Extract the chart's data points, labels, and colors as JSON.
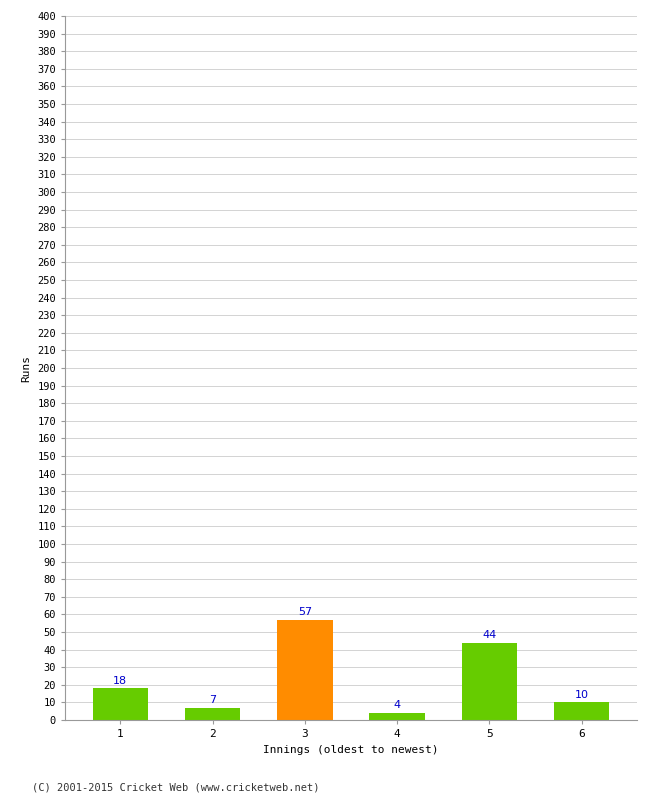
{
  "categories": [
    "1",
    "2",
    "3",
    "4",
    "5",
    "6"
  ],
  "values": [
    18,
    7,
    57,
    4,
    44,
    10
  ],
  "bar_colors": [
    "#66cc00",
    "#66cc00",
    "#ff8c00",
    "#66cc00",
    "#66cc00",
    "#66cc00"
  ],
  "xlabel": "Innings (oldest to newest)",
  "ylabel": "Runs",
  "ylim": [
    0,
    400
  ],
  "ytick_step": 10,
  "background_color": "#ffffff",
  "grid_color": "#cccccc",
  "label_color": "#0000cc",
  "footer": "(C) 2001-2015 Cricket Web (www.cricketweb.net)"
}
